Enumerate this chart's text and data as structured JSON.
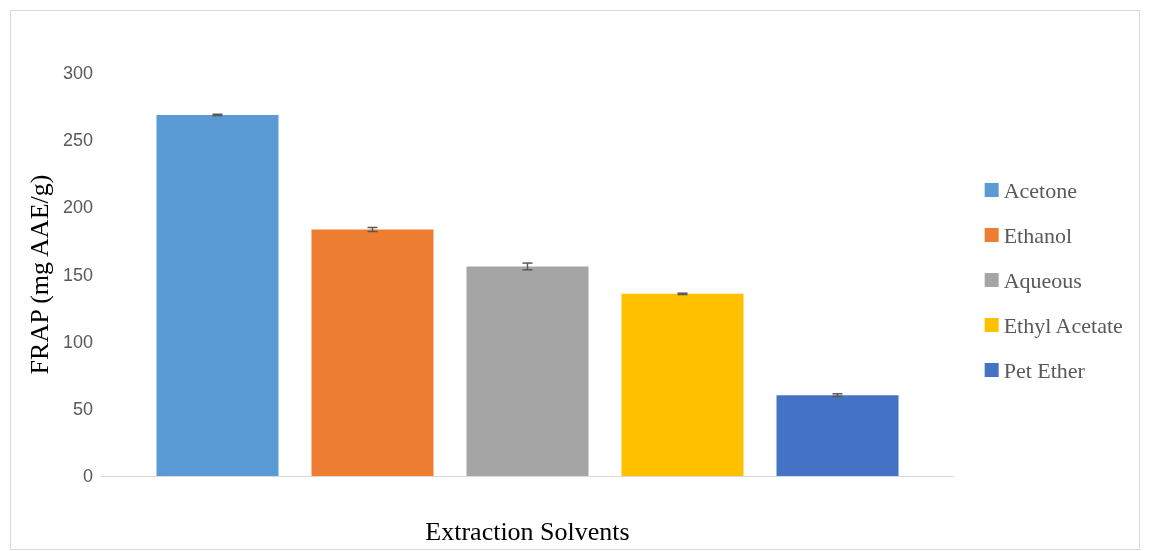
{
  "chart_data": {
    "type": "bar",
    "xlabel": "Extraction Solvents",
    "ylabel": "FRAP (mg AAE/g)",
    "categories": [
      null
    ],
    "series": [
      {
        "name": "Acetone",
        "color": "#5b9bd5",
        "values": [
          268.8
        ],
        "errors": [
          0.5
        ]
      },
      {
        "name": "Ethanol",
        "color": "#ed7d31",
        "values": [
          183.5
        ],
        "errors": [
          1.5
        ]
      },
      {
        "name": "Aqueous",
        "color": "#a5a5a5",
        "values": [
          156
        ],
        "errors": [
          2.5
        ]
      },
      {
        "name": "Ethyl Acetate",
        "color": "#ffc000",
        "values": [
          135.6
        ],
        "errors": [
          0.5
        ]
      },
      {
        "name": "Pet Ether",
        "color": "#4472c4",
        "values": [
          60.2
        ],
        "errors": [
          1
        ]
      }
    ],
    "ylim": [
      0,
      300
    ],
    "yticks": [
      0,
      50,
      100,
      150,
      200,
      250,
      300
    ],
    "grid": false,
    "legend": "right"
  }
}
